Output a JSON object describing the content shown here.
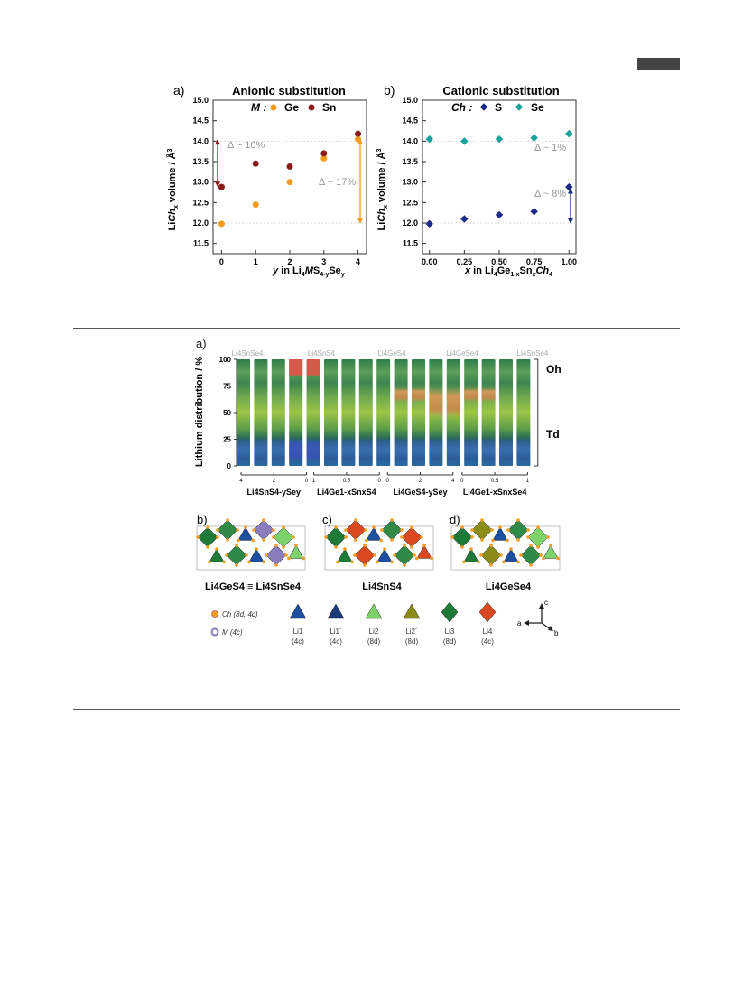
{
  "figure1": {
    "panel_a": {
      "label": "a)",
      "title": "Anionic substitution",
      "legend_label": "M :",
      "legend_items": [
        "Ge",
        "Sn"
      ],
      "xlabel": "y in Li4MS4-ySey",
      "ylabel": "LiChx volume / Å3",
      "annotations": [
        "Δ ~ 10%",
        "Δ ~ 17%"
      ]
    },
    "panel_b": {
      "label": "b)",
      "title": "Cationic substitution",
      "legend_label": "Ch :",
      "legend_items": [
        "S",
        "Se"
      ],
      "xlabel": "x in Li4Ge1-xSnxCh4",
      "ylabel": "LiChx volume / Å3",
      "annotations": [
        "Δ ~ 1%",
        "Δ ~ 8%"
      ]
    }
  },
  "chart_data": [
    {
      "type": "scatter",
      "title": "Anionic substitution",
      "xlabel": "y in Li4MS4-ySey",
      "ylabel": "LiChx volume / Å3",
      "xlim": [
        -0.25,
        4.25
      ],
      "ylim": [
        11.25,
        15.0
      ],
      "x_ticks": [
        "0",
        "1",
        "2",
        "3",
        "4"
      ],
      "y_ticks": [
        "11.5",
        "12.0",
        "12.5",
        "13.0",
        "13.5",
        "14.0",
        "14.5",
        "15.0"
      ],
      "series": [
        {
          "name": "Ge",
          "color": "#f39c1f",
          "x": [
            0,
            1,
            2,
            3,
            4
          ],
          "y": [
            11.98,
            12.45,
            13.0,
            13.58,
            14.05
          ]
        },
        {
          "name": "Sn",
          "color": "#8b1a1a",
          "x": [
            0,
            1,
            2,
            3,
            4
          ],
          "y": [
            12.88,
            13.45,
            13.38,
            13.7,
            14.18
          ]
        }
      ]
    },
    {
      "type": "scatter",
      "title": "Cationic substitution",
      "xlabel": "x in Li4Ge1-xSnxCh4",
      "ylabel": "LiChx volume / Å3",
      "xlim": [
        -0.05,
        1.05
      ],
      "ylim": [
        11.25,
        15.0
      ],
      "x_ticks": [
        "0.00",
        "0.25",
        "0.50",
        "0.75",
        "1.00"
      ],
      "y_ticks": [
        "11.5",
        "12.0",
        "12.5",
        "13.0",
        "13.5",
        "14.0",
        "14.5",
        "15.0"
      ],
      "series": [
        {
          "name": "S",
          "color": "#1c2a8a",
          "x": [
            0,
            0.25,
            0.5,
            0.75,
            1.0
          ],
          "y": [
            11.98,
            12.1,
            12.2,
            12.28,
            12.88
          ]
        },
        {
          "name": "Se",
          "color": "#1aa39a",
          "x": [
            0,
            0.25,
            0.5,
            0.75,
            1.0
          ],
          "y": [
            14.05,
            14.0,
            14.05,
            14.08,
            14.18
          ]
        }
      ]
    },
    {
      "type": "heatmap",
      "title": "",
      "ylabel": "Lithium distribution / %",
      "ylim": [
        0,
        100
      ],
      "y_ticks": [
        "0",
        "25",
        "50",
        "75",
        "100"
      ],
      "top_labels": [
        "Li4SnSe4",
        "Li4SnS4",
        "Li4GeS4",
        "Li4GeSe4",
        "Li4SnSe4"
      ],
      "right_labels": [
        "Oh",
        "Td"
      ],
      "groups": [
        {
          "label": "Li4SnS4-ySey",
          "ticks": [
            "4",
            "2",
            "0"
          ]
        },
        {
          "label": "Li4Ge1-xSnxS4",
          "ticks": [
            "1",
            "0.5",
            "0"
          ]
        },
        {
          "label": "Li4GeS4-ySey",
          "ticks": [
            "0",
            "2",
            "4"
          ]
        },
        {
          "label": "Li4Ge1-xSnxSe4",
          "ticks": [
            "0",
            "0.5",
            "1"
          ]
        }
      ]
    }
  ],
  "figure2": {
    "panel_a_label": "a)",
    "panel_b": {
      "label": "b)",
      "caption": "Li4GeS4 ≡ Li4SnSe4"
    },
    "panel_c": {
      "label": "c)",
      "caption": "Li4SnS4"
    },
    "panel_d": {
      "label": "d)",
      "caption": "Li4GeSe4"
    },
    "atom_legend": [
      {
        "text": "Ch (8d, 4c)",
        "color": "#f39c1f"
      },
      {
        "text": "M (4c)",
        "color": "#8a7dbd"
      }
    ],
    "site_legend": [
      {
        "name": "Li1",
        "site": "(4c)",
        "color": "#1d4fa0"
      },
      {
        "name": "Li1´",
        "site": "(4c)",
        "color": "#1a3a7a"
      },
      {
        "name": "Li2",
        "site": "(8d)",
        "color": "#7dd36a"
      },
      {
        "name": "Li2´",
        "site": "(8d)",
        "color": "#8c8c1a"
      },
      {
        "name": "Li3",
        "site": "(8d)",
        "color": "#1f7a3a"
      },
      {
        "name": "Li4",
        "site": "(4c)",
        "color": "#d9481f"
      }
    ],
    "axes": [
      "a",
      "b",
      "c"
    ]
  }
}
